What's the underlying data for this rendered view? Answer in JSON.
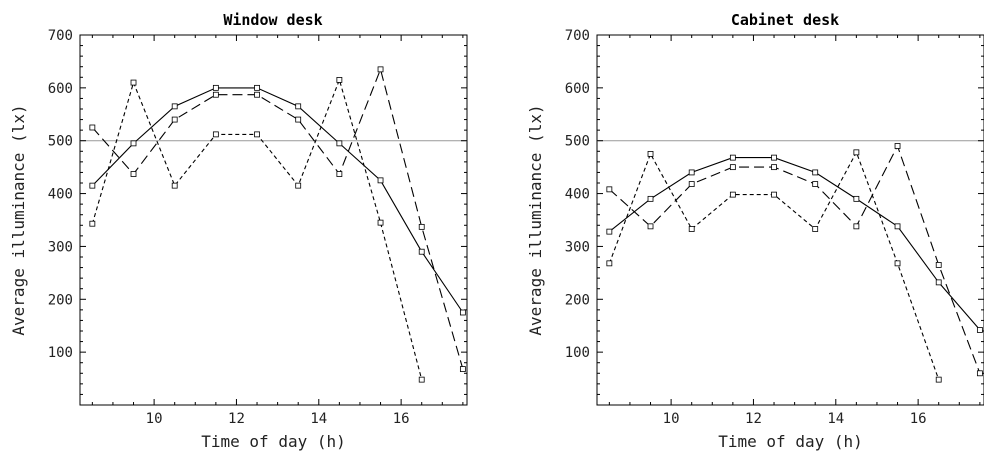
{
  "chart_data": [
    {
      "type": "line",
      "title": "Window desk",
      "xlabel": "Time of day (h)",
      "ylabel": "Average illuminance (lx)",
      "xlim": [
        8.2,
        17.6
      ],
      "ylim": [
        0,
        700
      ],
      "xticks": [
        10,
        12,
        14,
        16
      ],
      "yticks": [
        100,
        200,
        300,
        400,
        500,
        600,
        700
      ],
      "reference_line": 500,
      "x": [
        8.5,
        9.5,
        10.5,
        11.5,
        12.5,
        13.5,
        14.5,
        15.5,
        16.5,
        17.5
      ],
      "series": [
        {
          "style": "solid",
          "values": [
            415,
            495,
            565,
            600,
            600,
            565,
            495,
            425,
            290,
            175
          ]
        },
        {
          "style": "long-dash",
          "values": [
            525,
            437,
            540,
            587,
            587,
            540,
            437,
            635,
            337,
            68
          ]
        },
        {
          "style": "short-dash",
          "values": [
            343,
            610,
            415,
            512,
            512,
            415,
            615,
            345,
            48,
            null
          ]
        }
      ]
    },
    {
      "type": "line",
      "title": "Cabinet desk",
      "xlabel": "Time of day (h)",
      "ylabel": "Average illuminance (lx)",
      "xlim": [
        8.2,
        17.6
      ],
      "ylim": [
        0,
        700
      ],
      "xticks": [
        10,
        12,
        14,
        16
      ],
      "yticks": [
        100,
        200,
        300,
        400,
        500,
        600,
        700
      ],
      "reference_line": 500,
      "x": [
        8.5,
        9.5,
        10.5,
        11.5,
        12.5,
        13.5,
        14.5,
        15.5,
        16.5,
        17.5
      ],
      "series": [
        {
          "style": "solid",
          "values": [
            328,
            390,
            440,
            468,
            468,
            440,
            390,
            338,
            232,
            142
          ]
        },
        {
          "style": "long-dash",
          "values": [
            408,
            338,
            418,
            450,
            450,
            418,
            338,
            490,
            265,
            60
          ]
        },
        {
          "style": "short-dash",
          "values": [
            268,
            475,
            333,
            398,
            398,
            333,
            478,
            268,
            48,
            null
          ]
        }
      ]
    }
  ]
}
